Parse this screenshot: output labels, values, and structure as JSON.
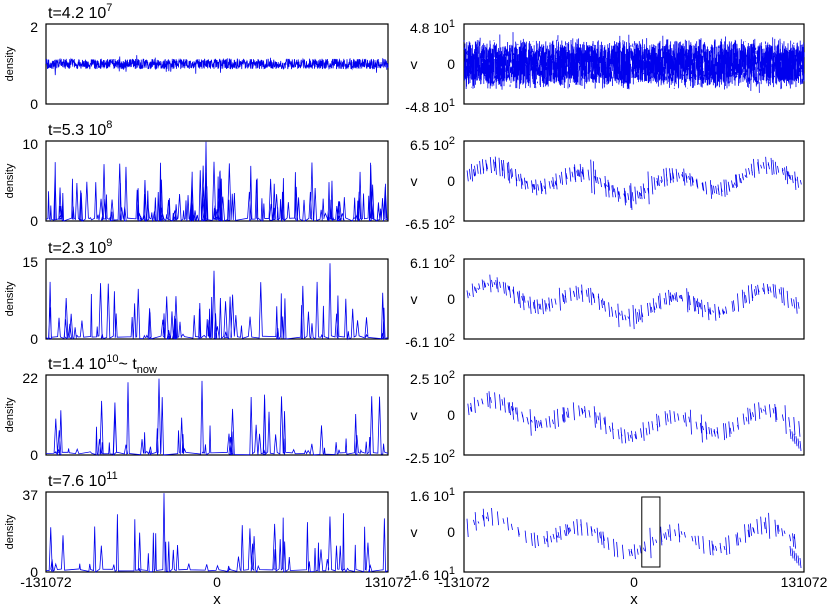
{
  "chart_data": {
    "type": "line",
    "grid": false,
    "x_axis": {
      "label": "x",
      "range": [
        -131072,
        131072
      ],
      "ticks": [
        "-131072",
        "0",
        "131072"
      ]
    },
    "series_color": "#0000ee",
    "rows": [
      {
        "time": {
          "base": "t=4.2 10",
          "exp": "7"
        },
        "density": {
          "ylabel": "density",
          "ylim": [
            0,
            2
          ],
          "tick_top": "2",
          "tick_bottom": "0",
          "character": "nearly uniform, fluctuating about 1"
        },
        "velocity": {
          "ylabel": "v",
          "ylim": [
            -48,
            48
          ],
          "tick_top": "4.8 10",
          "tick_top_exp": "1",
          "tick_mid": "0",
          "tick_bottom": "-4.8 10",
          "tick_bottom_exp": "1",
          "character": "dense noise band filling most of the range"
        }
      },
      {
        "time": {
          "base": "t=5.3 10",
          "exp": "8"
        },
        "density": {
          "ylabel": "density",
          "ylim": [
            0,
            10
          ],
          "tick_top": "10",
          "tick_bottom": "0",
          "character": "many spikes, peaks up to about 10"
        },
        "velocity": {
          "ylabel": "v",
          "ylim": [
            -650,
            650
          ],
          "tick_top": "6.5 10",
          "tick_top_exp": "2",
          "tick_mid": "0",
          "tick_bottom": "-6.5 10",
          "tick_bottom_exp": "2",
          "character": "short vertical dashes scattered around 0"
        }
      },
      {
        "time": {
          "base": "t=2.3 10",
          "exp": "9"
        },
        "density": {
          "ylabel": "density",
          "ylim": [
            0,
            15
          ],
          "tick_top": "15",
          "tick_bottom": "0",
          "character": "fewer, taller spikes up to about 14"
        },
        "velocity": {
          "ylabel": "v",
          "ylim": [
            -610,
            610
          ],
          "tick_top": "6.1 10",
          "tick_top_exp": "2",
          "tick_mid": "0",
          "tick_bottom": "-6.1 10",
          "tick_bottom_exp": "2",
          "character": "segmented dashes, slight downward trend toward the right"
        }
      },
      {
        "time": {
          "base": "t=1.4 10",
          "exp": "10",
          "suffix": "~ t",
          "suffix_sub": "now"
        },
        "density": {
          "ylabel": "density",
          "ylim": [
            0,
            22
          ],
          "tick_top": "22",
          "tick_bottom": "0",
          "character": "sparse spikes, peaks reaching about 22"
        },
        "velocity": {
          "ylabel": "v",
          "ylim": [
            -250,
            250
          ],
          "tick_top": "2.5 10",
          "tick_top_exp": "2",
          "tick_mid": "0",
          "tick_bottom": "-2.5 10",
          "tick_bottom_exp": "2",
          "character": "sawtooth of dashes, declining toward the right edge"
        }
      },
      {
        "time": {
          "base": "t=7.6 10",
          "exp": "11"
        },
        "density": {
          "ylabel": "density",
          "ylim": [
            0,
            37
          ],
          "tick_top": "37",
          "tick_bottom": "0",
          "character": "very sparse spikes, the tallest near x = -40000 reaching about 37"
        },
        "velocity": {
          "ylabel": "v",
          "ylim": [
            -16,
            16
          ],
          "tick_top": "1.6 10",
          "tick_top_exp": "1",
          "tick_mid": "0",
          "tick_bottom": "-1.6 10",
          "tick_bottom_exp": "1",
          "character": "sawtooth dashes, sharp drop near the right edge",
          "annotation": {
            "type": "box",
            "x_range": [
              6000,
              20000
            ],
            "y_range": [
              -14,
              14
            ]
          }
        }
      }
    ]
  }
}
